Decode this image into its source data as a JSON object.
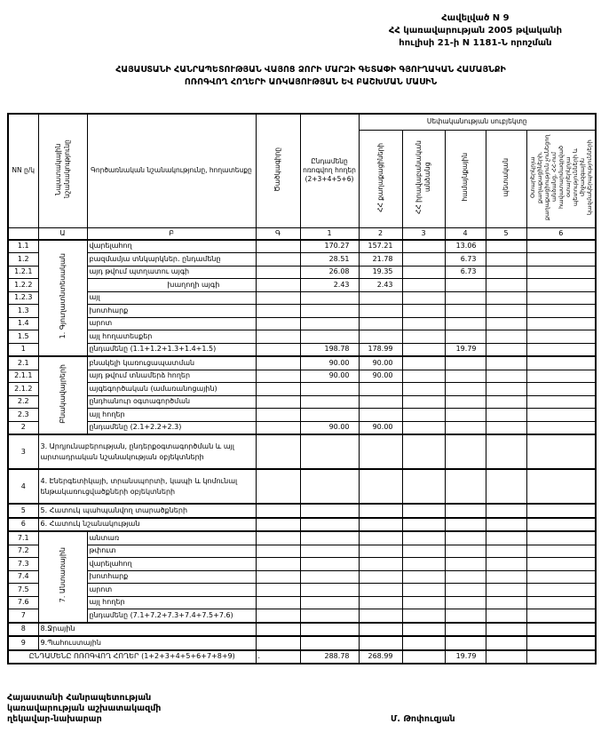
{
  "annex": {
    "line1": "Հավելված N 9",
    "line2": "ՀՀ կառավարության 2005 թվականի",
    "line3": "հուլիսի 21-ի N 1181-Ն որոշման"
  },
  "title": {
    "line1": "ՀԱՅԱՍՏԱՆԻ ՀԱՆՐԱՊԵՏՈՒԹՅԱՆ ՎԱՅՈՑ ՁՈՐԻ ՄԱՐԶԻ ԳԵՏԱՓԻ ԳՅՈՒՂԱԿԱՆ ՀԱՄԱՅՆՔԻ",
    "line2": "ՈՌՈԳՎՈՂ ՀՈՂԵՐԻ ԱՌԿԱՅՈՒԹՅԱՆ ԵՎ ԲԱՇԽՄԱՆ ՄԱՍԻՆ"
  },
  "table": {
    "headers": {
      "nn": "NN ը/կ",
      "purpose": "Նպատակային նշանակությունը",
      "function": "Գործառնական նշանակությունը, հողատեսքը",
      "code": "Ծածկագիրը",
      "total": "Ընդամենը ոռոգվող հողեր (2+3+4+5+6)",
      "ownership_group": "Սեփականության սուբյեկտը",
      "citizens": "ՀՀ քաղաքացիների",
      "legal": "ՀՀ իրավաբանական անձանց",
      "community": "համայնքային",
      "state": "պետական",
      "foreign": "Օտարերկրյա քաղաքացիների, քաղաքացիություն չունեցող անձանց, ՀՀ-ում հավատարմագրված օտարերկրյա պետությունների և միջազգային կազմակերպությունների"
    },
    "col_numbers": [
      "",
      "Ա",
      "Բ",
      "Գ",
      "1",
      "2",
      "3",
      "4",
      "5",
      "6"
    ],
    "groups": [
      {
        "label": "1. Գյուղատնտեսական",
        "rows": [
          {
            "nn": "1.1",
            "name": "վարելահող",
            "code": "",
            "v": [
              "170.27",
              "157.21",
              "",
              "13.06",
              "",
              ""
            ]
          },
          {
            "nn": "1.2",
            "name": "բազմամյա տնկարկներ. ընդամենը",
            "code": "",
            "v": [
              "28.51",
              "21.78",
              "",
              "6.73",
              "",
              ""
            ]
          },
          {
            "nn": "1.2.1",
            "name": "այդ թվում        պտղատու այգի",
            "code": "",
            "v": [
              "26.08",
              "19.35",
              "",
              "6.73",
              "",
              ""
            ]
          },
          {
            "nn": "1.2.2",
            "name": "խաղողի այգի",
            "indent": true,
            "code": "",
            "v": [
              "2.43",
              "2.43",
              "",
              "",
              "",
              ""
            ]
          },
          {
            "nn": "1.2.3",
            "name": "այլ",
            "code": "",
            "v": [
              "",
              "",
              "",
              "",
              "",
              ""
            ]
          },
          {
            "nn": "1.3",
            "name": "խոտհարք",
            "code": "",
            "v": [
              "",
              "",
              "",
              "",
              "",
              ""
            ]
          },
          {
            "nn": "1.4",
            "name": "արոտ",
            "code": "",
            "v": [
              "",
              "",
              "",
              "",
              "",
              ""
            ]
          },
          {
            "nn": "1.5",
            "name": "այլ հողատեսքեր",
            "code": "",
            "v": [
              "",
              "",
              "",
              "",
              "",
              ""
            ]
          },
          {
            "nn": "1",
            "name": "ընդամենը (1.1+1.2+1.3+1.4+1.5)",
            "code": "",
            "v": [
              "198.78",
              "178.99",
              "",
              "19.79",
              "",
              ""
            ]
          }
        ]
      },
      {
        "label": "Բնակավայրերի",
        "rows": [
          {
            "nn": "2.1",
            "name": "բնակելի կառուցապատման",
            "code": "",
            "v": [
              "90.00",
              "90.00",
              "",
              "",
              "",
              ""
            ]
          },
          {
            "nn": "2.1.1",
            "name": "այդ թվում տնամերձ հողեր",
            "code": "",
            "v": [
              "90.00",
              "90.00",
              "",
              "",
              "",
              ""
            ]
          },
          {
            "nn": "2.1.2",
            "name": "այգեգործական (ամառանոցային)",
            "code": "",
            "v": [
              "",
              "",
              "",
              "",
              "",
              ""
            ]
          },
          {
            "nn": "2.2",
            "name": "ընդհանուր օգտագործման",
            "code": "",
            "v": [
              "",
              "",
              "",
              "",
              "",
              ""
            ]
          },
          {
            "nn": "2.3",
            "name": "այլ հողեր",
            "code": "",
            "v": [
              "",
              "",
              "",
              "",
              "",
              ""
            ]
          },
          {
            "nn": "2",
            "name": "ընդամենը (2.1+2.2+2.3)",
            "code": "",
            "v": [
              "90.00",
              "90.00",
              "",
              "",
              "",
              ""
            ]
          }
        ]
      },
      {
        "single": [
          {
            "nn": "3",
            "name": "3. Արդյունաբերության, ընդերքօգտագործման և այլ արտադրական նշանակության օբյեկտների",
            "tall": true,
            "v": [
              "",
              "",
              "",
              "",
              "",
              ""
            ]
          },
          {
            "nn": "4",
            "name": "4. Էներգետիկայի, տրանսպորտի, կապի և կոմունալ ենթակառուցվածքների օբյեկտների",
            "tall": true,
            "v": [
              "",
              "",
              "",
              "",
              "",
              ""
            ]
          },
          {
            "nn": "5",
            "name": "5. Հատուկ պահպանվող տարածքների",
            "v": [
              "",
              "",
              "",
              "",
              "",
              ""
            ]
          },
          {
            "nn": "6",
            "name": "6. Հատուկ նշանակության",
            "v": [
              "",
              "",
              "",
              "",
              "",
              ""
            ]
          }
        ]
      },
      {
        "label": "7. Անտառային",
        "rows": [
          {
            "nn": "7.1",
            "name": "անտառ",
            "code": "",
            "v": [
              "",
              "",
              "",
              "",
              "",
              ""
            ]
          },
          {
            "nn": "7.2",
            "name": "թփուտ",
            "code": "",
            "v": [
              "",
              "",
              "",
              "",
              "",
              ""
            ]
          },
          {
            "nn": "7.3",
            "name": "վարելահող",
            "code": "",
            "v": [
              "",
              "",
              "",
              "",
              "",
              ""
            ]
          },
          {
            "nn": "7.4",
            "name": "խոտհարք",
            "code": "",
            "v": [
              "",
              "",
              "",
              "",
              "",
              ""
            ]
          },
          {
            "nn": "7.5",
            "name": "արոտ",
            "code": "",
            "v": [
              "",
              "",
              "",
              "",
              "",
              ""
            ]
          },
          {
            "nn": "7.6",
            "name": "այլ հողեր",
            "code": "",
            "v": [
              "",
              "",
              "",
              "",
              "",
              ""
            ]
          },
          {
            "nn": "7",
            "name": "ընդամենը (7.1+7.2+7.3+7.4+7.5+7.6)",
            "code": "",
            "v": [
              "",
              "",
              "",
              "",
              "",
              ""
            ]
          }
        ]
      },
      {
        "single": [
          {
            "nn": "8",
            "name": "8.Ջրային",
            "v": [
              "",
              "",
              "",
              "",
              "",
              ""
            ]
          },
          {
            "nn": "9",
            "name": "9.Պահուստային",
            "v": [
              "",
              "",
              "",
              "",
              "",
              ""
            ]
          }
        ]
      }
    ],
    "grand_total": {
      "label": "ԸՆԴԱՄԵՆԸ ՈՌՈԳՎՈՂ ՀՈՂԵՐ (1+2+3+4+5+6+7+8+9)",
      "code": ".",
      "v": [
        "288.78",
        "268.99",
        "",
        "19.79",
        "",
        ""
      ]
    }
  },
  "footer": {
    "position_line1": "Հայաստանի Հանրապետության",
    "position_line2": "կառավարության աշխատակազմի",
    "position_line3": "ղեկավար-նախարար",
    "signatory": "Մ. Թոփուզյան"
  }
}
